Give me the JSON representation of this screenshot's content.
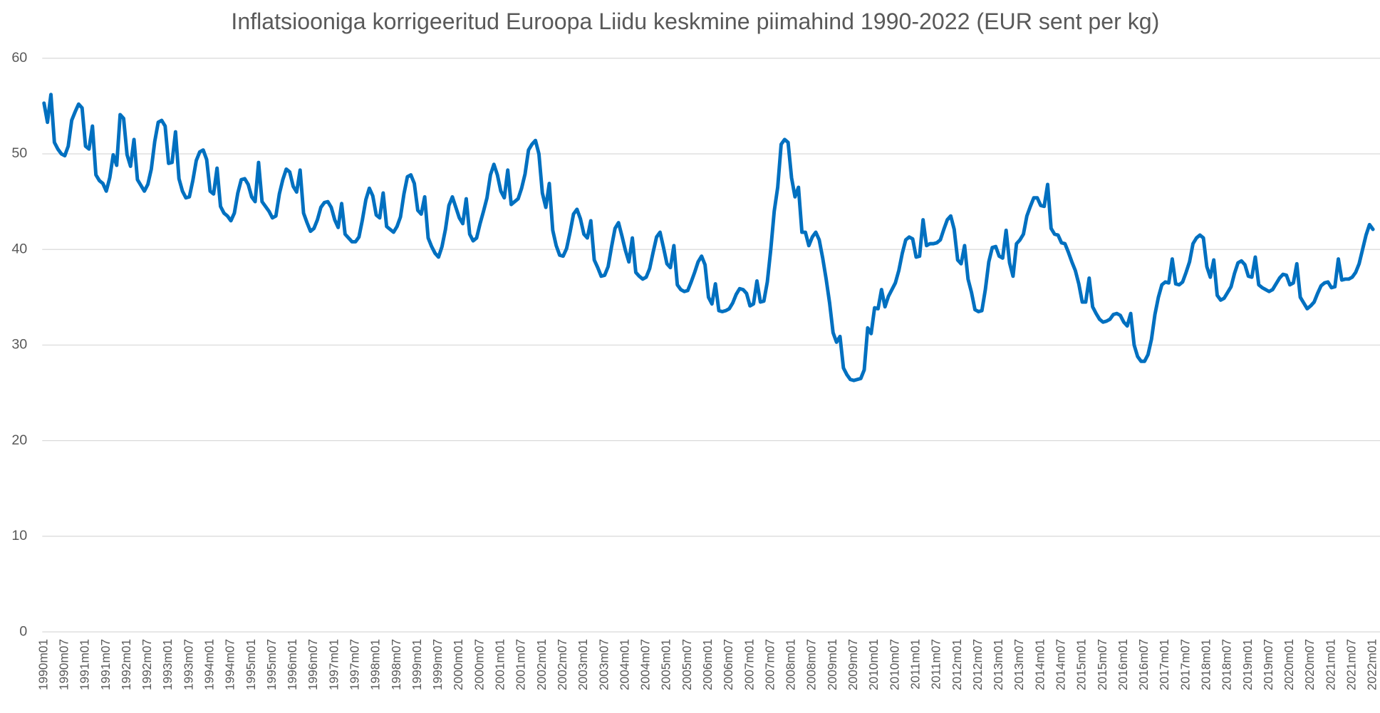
{
  "chart_data": {
    "type": "line",
    "title": "Inflatsiooniga korrigeeritud Euroopa Liidu keskmine piimahind 1990-2022 (EUR sent per kg)",
    "color": "#0070c0",
    "grid": true,
    "ylim": [
      0,
      60
    ],
    "yticks": [
      0,
      10,
      20,
      30,
      40,
      50,
      60
    ],
    "categories": [
      "1990m01",
      null,
      null,
      null,
      null,
      null,
      "1990m07",
      null,
      null,
      null,
      null,
      null,
      "1991m01",
      null,
      null,
      null,
      null,
      null,
      "1991m07",
      null,
      null,
      null,
      null,
      null,
      "1992m01",
      null,
      null,
      null,
      null,
      null,
      "1992m07",
      null,
      null,
      null,
      null,
      null,
      "1993m01",
      null,
      null,
      null,
      null,
      null,
      "1993m07",
      null,
      null,
      null,
      null,
      null,
      "1994m01",
      null,
      null,
      null,
      null,
      null,
      "1994m07",
      null,
      null,
      null,
      null,
      null,
      "1995m01",
      null,
      null,
      null,
      null,
      null,
      "1995m07",
      null,
      null,
      null,
      null,
      null,
      "1996m01",
      null,
      null,
      null,
      null,
      null,
      "1996m07",
      null,
      null,
      null,
      null,
      null,
      "1997m01",
      null,
      null,
      null,
      null,
      null,
      "1997m07",
      null,
      null,
      null,
      null,
      null,
      "1998m01",
      null,
      null,
      null,
      null,
      null,
      "1998m07",
      null,
      null,
      null,
      null,
      null,
      "1999m01",
      null,
      null,
      null,
      null,
      null,
      "1999m07",
      null,
      null,
      null,
      null,
      null,
      "2000m01",
      null,
      null,
      null,
      null,
      null,
      "2000m07",
      null,
      null,
      null,
      null,
      null,
      "2001m01",
      null,
      null,
      null,
      null,
      null,
      "2001m07",
      null,
      null,
      null,
      null,
      null,
      "2002m01",
      null,
      null,
      null,
      null,
      null,
      "2002m07",
      null,
      null,
      null,
      null,
      null,
      "2003m01",
      null,
      null,
      null,
      null,
      null,
      "2003m07",
      null,
      null,
      null,
      null,
      null,
      "2004m01",
      null,
      null,
      null,
      null,
      null,
      "2004m07",
      null,
      null,
      null,
      null,
      null,
      "2005m01",
      null,
      null,
      null,
      null,
      null,
      "2005m07",
      null,
      null,
      null,
      null,
      null,
      "2006m01",
      null,
      null,
      null,
      null,
      null,
      "2006m07",
      null,
      null,
      null,
      null,
      null,
      "2007m01",
      null,
      null,
      null,
      null,
      null,
      "2007m07",
      null,
      null,
      null,
      null,
      null,
      "2008m01",
      null,
      null,
      null,
      null,
      null,
      "2008m07",
      null,
      null,
      null,
      null,
      null,
      "2009m01",
      null,
      null,
      null,
      null,
      null,
      "2009m07",
      null,
      null,
      null,
      null,
      null,
      "2010m01",
      null,
      null,
      null,
      null,
      null,
      "2010m07",
      null,
      null,
      null,
      null,
      null,
      "2011m01",
      null,
      null,
      null,
      null,
      null,
      "2011m07",
      null,
      null,
      null,
      null,
      null,
      "2012m01",
      null,
      null,
      null,
      null,
      null,
      "2012m07",
      null,
      null,
      null,
      null,
      null,
      "2013m01",
      null,
      null,
      null,
      null,
      null,
      "2013m07",
      null,
      null,
      null,
      null,
      null,
      "2014m01",
      null,
      null,
      null,
      null,
      null,
      "2014m07",
      null,
      null,
      null,
      null,
      null,
      "2015m01",
      null,
      null,
      null,
      null,
      null,
      "2015m07",
      null,
      null,
      null,
      null,
      null,
      "2016m01",
      null,
      null,
      null,
      null,
      null,
      "2016m07",
      null,
      null,
      null,
      null,
      null,
      "2017m01",
      null,
      null,
      null,
      null,
      null,
      "2017m07",
      null,
      null,
      null,
      null,
      null,
      "2018m01",
      null,
      null,
      null,
      null,
      null,
      "2018m07",
      null,
      null,
      null,
      null,
      null,
      "2019m01",
      null,
      null,
      null,
      null,
      null,
      "2019m07",
      null,
      null,
      null,
      null,
      null,
      "2020m01",
      null,
      null,
      null,
      null,
      null,
      "2020m07",
      null,
      null,
      null,
      null,
      null,
      "2021m01",
      null,
      null,
      null,
      null,
      null,
      "2021m07",
      null,
      null,
      null,
      null,
      null,
      "2022m01"
    ],
    "values": [
      55.3,
      53.3,
      56.2,
      51.2,
      50.5,
      50.0,
      49.8,
      50.8,
      53.5,
      54.4,
      55.2,
      54.8,
      50.8,
      50.5,
      52.9,
      47.8,
      47.2,
      46.9,
      46.1,
      47.5,
      49.9,
      48.8,
      54.1,
      53.7,
      49.9,
      48.7,
      51.5,
      47.3,
      46.7,
      46.1,
      46.8,
      48.4,
      51.3,
      53.3,
      53.5,
      52.9,
      49.0,
      49.1,
      52.3,
      47.4,
      46.1,
      45.4,
      45.5,
      47.2,
      49.3,
      50.2,
      50.4,
      49.4,
      46.1,
      45.8,
      48.5,
      44.5,
      43.8,
      43.5,
      43.0,
      43.8,
      45.9,
      47.3,
      47.4,
      46.8,
      45.5,
      45.0,
      49.1,
      45.0,
      44.5,
      44.0,
      43.3,
      43.5,
      45.8,
      47.3,
      48.4,
      48.1,
      46.6,
      46.0,
      48.3,
      43.8,
      42.8,
      41.9,
      42.2,
      43.1,
      44.4,
      44.9,
      45.0,
      44.4,
      43.1,
      42.3,
      44.8,
      41.6,
      41.2,
      40.8,
      40.8,
      41.3,
      43.1,
      45.2,
      46.4,
      45.6,
      43.6,
      43.3,
      45.9,
      42.4,
      42.1,
      41.8,
      42.4,
      43.4,
      45.8,
      47.6,
      47.8,
      46.9,
      44.1,
      43.7,
      45.5,
      41.2,
      40.3,
      39.6,
      39.2,
      40.3,
      42.1,
      44.6,
      45.5,
      44.4,
      43.3,
      42.7,
      45.3,
      41.6,
      40.9,
      41.2,
      42.7,
      44.0,
      45.4,
      47.8,
      48.9,
      47.8,
      46.1,
      45.4,
      48.3,
      44.7,
      45.0,
      45.3,
      46.4,
      47.9,
      50.4,
      51.0,
      51.4,
      50.0,
      45.9,
      44.4,
      46.9,
      42.0,
      40.4,
      39.4,
      39.3,
      40.1,
      41.8,
      43.7,
      44.2,
      43.2,
      41.6,
      41.2,
      43.0,
      38.9,
      38.1,
      37.2,
      37.3,
      38.2,
      40.3,
      42.2,
      42.8,
      41.4,
      39.9,
      38.7,
      41.2,
      37.6,
      37.2,
      36.9,
      37.1,
      38.0,
      39.7,
      41.3,
      41.8,
      40.2,
      38.5,
      38.1,
      40.4,
      36.3,
      35.8,
      35.6,
      35.7,
      36.6,
      37.6,
      38.7,
      39.3,
      38.4,
      35.0,
      34.3,
      36.4,
      33.6,
      33.5,
      33.6,
      33.8,
      34.4,
      35.3,
      35.9,
      35.8,
      35.4,
      34.1,
      34.3,
      36.7,
      34.5,
      34.6,
      36.6,
      40.0,
      44.0,
      46.5,
      51.0,
      51.5,
      51.2,
      47.5,
      45.5,
      46.5,
      41.8,
      41.8,
      40.4,
      41.3,
      41.8,
      41.0,
      39.1,
      36.9,
      34.4,
      31.3,
      30.3,
      30.9,
      27.6,
      26.9,
      26.4,
      26.3,
      26.4,
      26.5,
      27.4,
      31.8,
      31.2,
      33.9,
      33.8,
      35.8,
      34.0,
      35.1,
      35.8,
      36.5,
      37.8,
      39.6,
      41.0,
      41.3,
      41.1,
      39.2,
      39.3,
      43.1,
      40.4,
      40.6,
      40.6,
      40.7,
      41.0,
      42.1,
      43.1,
      43.5,
      42.1,
      38.9,
      38.5,
      40.4,
      36.9,
      35.5,
      33.7,
      33.5,
      33.6,
      35.8,
      38.7,
      40.2,
      40.3,
      39.3,
      39.1,
      42.0,
      38.6,
      37.2,
      40.6,
      41.0,
      41.6,
      43.5,
      44.5,
      45.4,
      45.4,
      44.6,
      44.5,
      46.8,
      42.2,
      41.6,
      41.5,
      40.7,
      40.6,
      39.7,
      38.7,
      37.8,
      36.4,
      34.5,
      34.5,
      37.0,
      34.0,
      33.3,
      32.7,
      32.4,
      32.5,
      32.7,
      33.2,
      33.3,
      33.1,
      32.4,
      32.0,
      33.3,
      30.0,
      28.8,
      28.3,
      28.3,
      29.0,
      30.6,
      33.2,
      35.0,
      36.3,
      36.6,
      36.5,
      39.0,
      36.4,
      36.3,
      36.6,
      37.6,
      38.7,
      40.6,
      41.2,
      41.5,
      41.2,
      38.2,
      37.1,
      38.9,
      35.2,
      34.7,
      34.9,
      35.5,
      36.1,
      37.5,
      38.6,
      38.8,
      38.4,
      37.2,
      37.1,
      39.2,
      36.3,
      36.0,
      35.8,
      35.6,
      35.8,
      36.4,
      37.0,
      37.4,
      37.3,
      36.3,
      36.5,
      38.5,
      35.0,
      34.4,
      33.8,
      34.1,
      34.5,
      35.4,
      36.2,
      36.5,
      36.6,
      36.0,
      36.1,
      39.0,
      36.8,
      36.9,
      36.9,
      37.1,
      37.6,
      38.5,
      40.0,
      41.5,
      42.6,
      42.1
    ]
  }
}
